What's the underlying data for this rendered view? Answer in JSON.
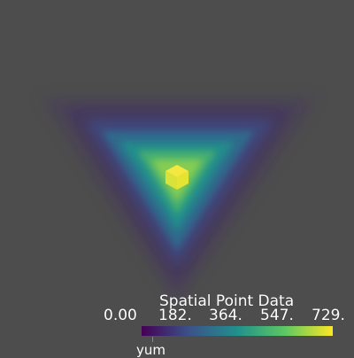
{
  "scene": {
    "background": "#4d4d4d",
    "colormap": "viridis",
    "colormap_stops": [
      "#440154",
      "#3b528b",
      "#21908c",
      "#5dc863",
      "#fde725"
    ]
  },
  "scalar_bar": {
    "title": "Spatial Point Data",
    "array_name": "yum",
    "tick_labels": [
      "0.00",
      "182.",
      "364.",
      "547.",
      "729."
    ],
    "range": [
      0,
      729
    ]
  }
}
